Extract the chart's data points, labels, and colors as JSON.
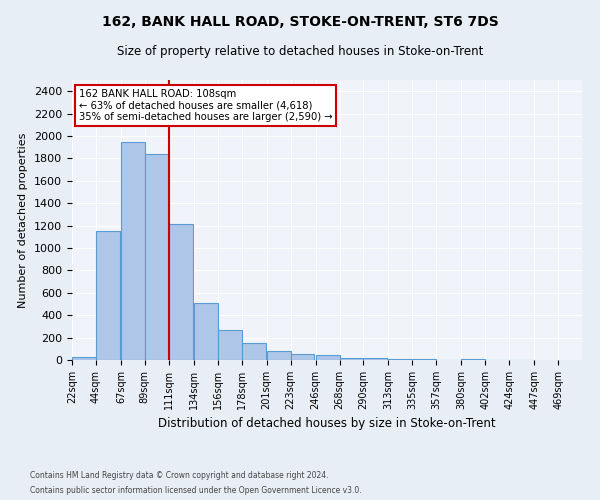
{
  "title": "162, BANK HALL ROAD, STOKE-ON-TRENT, ST6 7DS",
  "subtitle": "Size of property relative to detached houses in Stoke-on-Trent",
  "xlabel": "Distribution of detached houses by size in Stoke-on-Trent",
  "ylabel": "Number of detached properties",
  "bar_values": [
    30,
    1150,
    1950,
    1840,
    1210,
    510,
    265,
    155,
    80,
    50,
    45,
    20,
    15,
    10,
    5,
    2,
    5,
    2,
    2
  ],
  "bin_edges": [
    22,
    44,
    67,
    89,
    111,
    134,
    156,
    178,
    201,
    223,
    246,
    268,
    290,
    313,
    335,
    357,
    380,
    402,
    424,
    447
  ],
  "tick_labels": [
    "22sqm",
    "44sqm",
    "67sqm",
    "89sqm",
    "111sqm",
    "134sqm",
    "156sqm",
    "178sqm",
    "201sqm",
    "223sqm",
    "246sqm",
    "268sqm",
    "290sqm",
    "313sqm",
    "335sqm",
    "357sqm",
    "380sqm",
    "402sqm",
    "424sqm",
    "447sqm",
    "469sqm"
  ],
  "bar_color": "#aec6e8",
  "bar_edge_color": "#5b9bd5",
  "annotation_line1": "162 BANK HALL ROAD: 108sqm",
  "annotation_line2": "← 63% of detached houses are smaller (4,618)",
  "annotation_line3": "35% of semi-detached houses are larger (2,590) →",
  "annotation_box_color": "#ffffff",
  "annotation_box_edge": "#cc0000",
  "marker_line_color": "#cc0000",
  "ylim": [
    0,
    2500
  ],
  "yticks": [
    0,
    200,
    400,
    600,
    800,
    1000,
    1200,
    1400,
    1600,
    1800,
    2000,
    2200,
    2400
  ],
  "footer1": "Contains HM Land Registry data © Crown copyright and database right 2024.",
  "footer2": "Contains public sector information licensed under the Open Government Licence v3.0.",
  "bg_color": "#e8eef5",
  "plot_bg_color": "#f0f4fa"
}
